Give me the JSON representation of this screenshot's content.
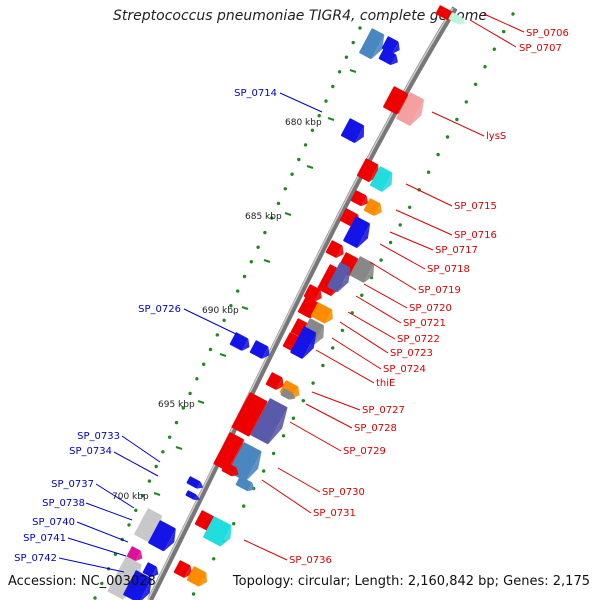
{
  "title": "Streptococcus pneumoniae TIGR4, complete genome",
  "footer": {
    "accession": "Accession: NC_003028",
    "topology": "Topology: circular; Length: 2,160,842 bp; Genes: 2,175"
  },
  "colors": {
    "forward_gene": "#ee0000",
    "reverse_gene": "#1414e6",
    "label_forward": "#dd0000",
    "label_reverse": "#0000cc",
    "tick": "#228822",
    "backbone": "#777777",
    "orange": "#ff8c00",
    "cyan": "#22dddd",
    "gray": "#888888",
    "slate": "#5a5aaa",
    "lightgray": "#c8c8c8",
    "pink": "#ff77aa",
    "steel": "#4a86c0",
    "magenta": "#dd1199"
  },
  "kbp_labels": [
    "680 kbp",
    "685 kbp",
    "690 kbp",
    "695 kbp",
    "700 kbp"
  ],
  "gene_labels_right": [
    "SP_0706",
    "SP_0707",
    "lysS",
    "SP_0715",
    "SP_0716",
    "SP_0717",
    "SP_0718",
    "SP_0719",
    "SP_0720",
    "SP_0721",
    "SP_0722",
    "SP_0723",
    "SP_0724",
    "thiE",
    "SP_0727",
    "SP_0728",
    "SP_0729",
    "SP_0730",
    "SP_0731",
    "SP_0736"
  ],
  "gene_labels_left": [
    "SP_0714",
    "SP_0726",
    "SP_0733",
    "SP_0734",
    "SP_0737",
    "SP_0738",
    "SP_0740",
    "SP_0741",
    "SP_0742"
  ]
}
